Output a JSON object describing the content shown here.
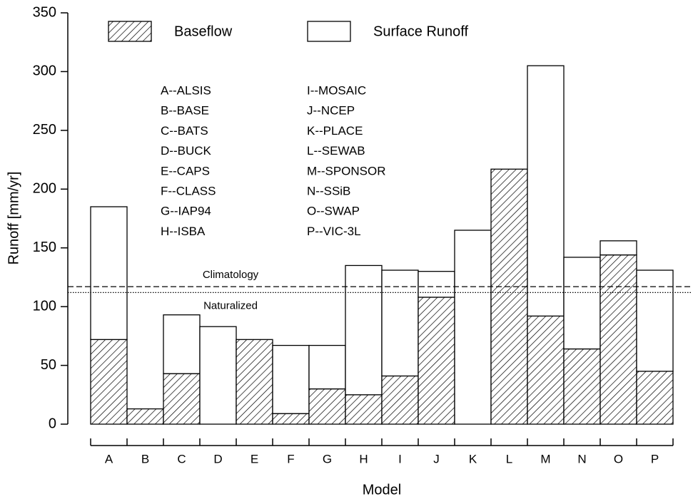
{
  "chart_data": {
    "type": "stacked_bar",
    "x_label": "Model",
    "y_label": "Runoff [mm/yr]",
    "categories": [
      "A",
      "B",
      "C",
      "D",
      "E",
      "F",
      "G",
      "H",
      "I",
      "J",
      "K",
      "L",
      "M",
      "N",
      "O",
      "P"
    ],
    "series": [
      {
        "name": "Baseflow",
        "color": "hatch",
        "values": [
          72,
          13,
          43,
          0,
          72,
          9,
          30,
          25,
          41,
          108,
          0,
          217,
          92,
          64,
          144,
          45
        ]
      },
      {
        "name": "Surface Runoff",
        "color": "#ffffff",
        "values": [
          113,
          0,
          50,
          83,
          0,
          58,
          37,
          110,
          90,
          22,
          165,
          0,
          213,
          78,
          12,
          86
        ]
      }
    ],
    "ylim": [
      0,
      350
    ],
    "yticks": [
      0,
      50,
      100,
      150,
      200,
      250,
      300,
      350
    ],
    "legend": "top",
    "reference_lines": [
      {
        "name": "Climatology",
        "value": 117,
        "style": "dashed"
      },
      {
        "name": "Naturalized",
        "value": 112,
        "style": "dotted"
      }
    ],
    "model_key": [
      "A--ALSIS",
      "B--BASE",
      "C--BATS",
      "D--BUCK",
      "E--CAPS",
      "F--CLASS",
      "G--IAP94",
      "H--ISBA",
      "I--MOSAIC",
      "J--NCEP",
      "K--PLACE",
      "L--SEWAB",
      "M--SPONSOR",
      "N--SSiB",
      "O--SWAP",
      "P--VIC-3L"
    ]
  }
}
